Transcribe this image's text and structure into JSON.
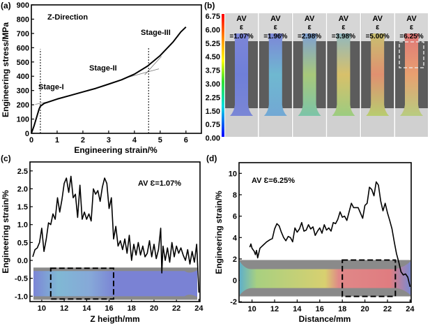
{
  "chart_data": [
    {
      "panel": "(a)",
      "type": "line",
      "annotations": [
        "Z-Direction",
        "Stage-I",
        "Stage-II",
        "Stage-III"
      ],
      "xlabel": "Engineering strain/%",
      "ylabel": "Engineering stress/MPa",
      "xlim": [
        0,
        6.6
      ],
      "ylim": [
        0,
        900
      ],
      "xticks": [
        0,
        1,
        2,
        3,
        4,
        5,
        6
      ],
      "yticks": [
        0,
        100,
        200,
        300,
        400,
        500,
        600,
        700,
        800,
        900
      ],
      "x": [
        0,
        0.1,
        0.2,
        0.3,
        0.35,
        0.5,
        1,
        1.5,
        2,
        2.5,
        3,
        3.5,
        4,
        4.5,
        5,
        5.5,
        5.8,
        6
      ],
      "y": [
        0,
        50,
        110,
        170,
        190,
        210,
        240,
        265,
        290,
        315,
        345,
        375,
        415,
        470,
        545,
        640,
        710,
        745
      ],
      "stage_boundaries": [
        0.35,
        4.55
      ]
    },
    {
      "panel": "(b)",
      "type": "heatmap",
      "colorbar_ticks": [
        "6.75",
        "6.00",
        "5.25",
        "4.50",
        "3.75",
        "3.00",
        "2.25",
        "1.50",
        "0.75",
        "0.00"
      ],
      "frames": [
        {
          "line1": "AV",
          "line2": "ε",
          "line3": "=1.07%",
          "colors": [
            "#7d86d8",
            "#6f7fd8",
            "#7a86d6"
          ]
        },
        {
          "line1": "AV",
          "line2": "ε",
          "line3": "=1.96%",
          "colors": [
            "#7d86d8",
            "#6fb8d0",
            "#72a8d4"
          ]
        },
        {
          "line1": "AV",
          "line2": "ε",
          "line3": "=2.98%",
          "colors": [
            "#7fa0d4",
            "#a8c87a",
            "#7cc4a8"
          ]
        },
        {
          "line1": "AV",
          "line2": "ε",
          "line3": "=3.98%",
          "colors": [
            "#90b8c0",
            "#d8c06a",
            "#9ccc80"
          ]
        },
        {
          "line1": "AV",
          "line2": "ε",
          "line3": "=5.00%",
          "colors": [
            "#c8c070",
            "#e09070",
            "#b8cc70"
          ]
        },
        {
          "line1": "AV",
          "line2": "ε",
          "line3": "=6.25%",
          "colors": [
            "#e07878",
            "#e8a070",
            "#b8cc80"
          ]
        }
      ]
    },
    {
      "panel": "(c)",
      "type": "line",
      "annotation": "AV Ɛ=1.07%",
      "xlabel": "Z heigth/mm",
      "ylabel": "Engineering strain/%",
      "xlim": [
        8.95,
        24.1
      ],
      "ylim": [
        -1.15,
        2.75
      ],
      "xticks": [
        10,
        12,
        14,
        16,
        18,
        20,
        22,
        24
      ],
      "yticks": [
        "-1.0",
        "-0.5",
        "0.0",
        "0.5",
        "1.0",
        "1.5",
        "2.0",
        "2.5"
      ],
      "x": [
        9.2,
        9.4,
        9.6,
        9.8,
        10,
        10.2,
        10.4,
        10.6,
        10.8,
        11,
        11.2,
        11.4,
        11.6,
        11.8,
        12,
        12.2,
        12.4,
        12.6,
        12.8,
        13,
        13.2,
        13.4,
        13.6,
        13.8,
        14,
        14.2,
        14.4,
        14.6,
        14.8,
        15,
        15.2,
        15.4,
        15.6,
        15.8,
        16,
        16.2,
        16.4,
        16.6,
        16.8,
        17,
        17.2,
        17.4,
        17.6,
        17.8,
        18,
        18.2,
        18.4,
        18.6,
        18.8,
        19,
        19.2,
        19.4,
        19.6,
        19.8,
        20,
        20.2,
        20.4,
        20.6,
        20.7,
        20.8,
        21,
        21.2,
        21.4,
        21.6,
        21.8,
        22,
        22.2,
        22.4,
        22.6,
        22.8,
        23,
        23.2,
        23.4,
        23.6,
        23.8,
        24
      ],
      "y": [
        0.1,
        0.3,
        0.35,
        0.5,
        0.9,
        0.25,
        0.6,
        1.05,
        1.0,
        1.3,
        1.15,
        1.75,
        1.35,
        1.7,
        2.15,
        2.3,
        1.9,
        2.35,
        1.75,
        1.85,
        1.2,
        2.1,
        1.15,
        1.35,
        1.15,
        1.3,
        1.1,
        2.0,
        1.85,
        1.95,
        1.65,
        2.05,
        2.3,
        2.15,
        1.45,
        1.75,
        0.6,
        0.95,
        0.4,
        0.55,
        0.3,
        0.6,
        0.2,
        0.7,
        0.0,
        0.45,
        0.15,
        0.5,
        0.15,
        0.4,
        0.1,
        0.2,
        0.55,
        0.1,
        0.45,
        0.05,
        0.3,
        0.9,
        -0.35,
        0.4,
        0.0,
        0.35,
        -0.05,
        0.5,
        0.1,
        0.4,
        0.2,
        0.35,
        0.15,
        0.0,
        0.3,
        -0.1,
        0.25,
        -0.05,
        0.45,
        -0.9
      ],
      "highlight_box_x": [
        10.8,
        16.4
      ]
    },
    {
      "panel": "(d)",
      "type": "line",
      "annotation": "AV Ɛ=6.25%",
      "xlabel": "Distance/mm",
      "ylabel": "Engineering strain/%",
      "xlim": [
        8.85,
        24.1
      ],
      "ylim": [
        -2.05,
        11.0
      ],
      "xticks": [
        10,
        12,
        14,
        16,
        18,
        20,
        22,
        24
      ],
      "yticks": [
        "-2",
        "0",
        "2",
        "4",
        "6",
        "8",
        "10"
      ],
      "x": [
        9.8,
        9.9,
        10,
        10.2,
        10.3,
        10.4,
        10.5,
        10.7,
        11,
        11.3,
        11.6,
        11.8,
        12,
        12.2,
        12.4,
        12.6,
        12.8,
        13,
        13.2,
        13.4,
        13.6,
        13.8,
        14,
        14.2,
        14.4,
        14.6,
        14.8,
        15,
        15.2,
        15.4,
        15.6,
        15.8,
        16,
        16.2,
        16.4,
        16.6,
        16.8,
        17,
        17.2,
        17.4,
        17.6,
        17.8,
        18,
        18.2,
        18.4,
        18.6,
        18.8,
        19,
        19.4,
        19.8,
        20,
        20.2,
        20.4,
        20.6,
        20.8,
        21,
        21.2,
        21.4,
        21.6,
        21.8,
        22,
        22.2,
        22.4,
        22.6,
        22.8,
        23,
        23.2,
        23.4,
        23.6,
        23.8,
        24
      ],
      "y": [
        3.1,
        3.4,
        3.0,
        2.7,
        2.4,
        2.8,
        2.1,
        3.0,
        3.3,
        3.6,
        3.8,
        3.9,
        4.8,
        5.3,
        5.1,
        4.5,
        4.0,
        3.7,
        4.1,
        4.0,
        3.6,
        4.9,
        4.5,
        4.8,
        5.4,
        4.6,
        4.7,
        5.2,
        4.8,
        5.0,
        4.2,
        4.6,
        4.9,
        4.4,
        5.2,
        4.7,
        4.9,
        4.6,
        5.4,
        5.3,
        5.7,
        6.4,
        5.9,
        6.0,
        5.6,
        6.4,
        7.2,
        6.8,
        6.8,
        5.8,
        7.0,
        7.2,
        8.7,
        8.5,
        7.9,
        9.2,
        8.9,
        7.4,
        6.5,
        7.2,
        6.3,
        5.6,
        4.8,
        3.6,
        2.5,
        1.7,
        0.8,
        0.5,
        0.6,
        0.3,
        -0.6
      ],
      "highlight_box_x": [
        18.0,
        22.7
      ]
    }
  ]
}
